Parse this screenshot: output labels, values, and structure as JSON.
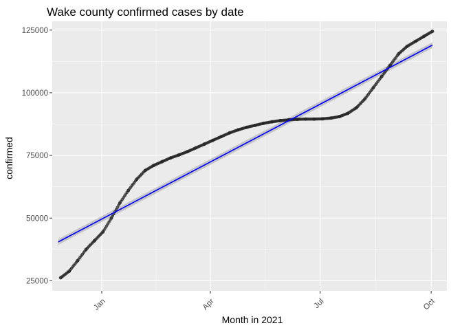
{
  "chart_data": {
    "type": "scatter",
    "title": "Wake county confirmed cases by date",
    "xlabel": "Month in 2021",
    "ylabel": "confirmed",
    "xlim": [
      "2020-11-21",
      "2021-10-14"
    ],
    "ylim": [
      21000,
      128500
    ],
    "x_ticks": [
      {
        "date": "2021-01-01",
        "label": "Jan"
      },
      {
        "date": "2021-04-01",
        "label": "Apr"
      },
      {
        "date": "2021-07-01",
        "label": "Jul"
      },
      {
        "date": "2021-10-01",
        "label": "Oct"
      }
    ],
    "y_ticks": [
      {
        "value": 25000,
        "label": "25000"
      },
      {
        "value": 50000,
        "label": "50000"
      },
      {
        "value": 75000,
        "label": "75000"
      },
      {
        "value": 100000,
        "label": "100000"
      },
      {
        "value": 125000,
        "label": "125000"
      }
    ],
    "grid": true,
    "legend": "none",
    "colors": {
      "panel": "#ebebeb",
      "grid_major": "#ffffff",
      "points": "#1f1f1f",
      "trend": "#0000ff",
      "band": "#bdbdbd"
    },
    "series": [
      {
        "kind": "points",
        "points": [
          [
            "2020-11-28",
            26200
          ],
          [
            "2020-12-05",
            28800
          ],
          [
            "2020-12-12",
            33000
          ],
          [
            "2020-12-19",
            37500
          ],
          [
            "2020-12-26",
            41000
          ],
          [
            "2021-01-02",
            44500
          ],
          [
            "2021-01-09",
            50000
          ],
          [
            "2021-01-16",
            56000
          ],
          [
            "2021-01-23",
            61000
          ],
          [
            "2021-01-30",
            65500
          ],
          [
            "2021-02-06",
            69000
          ],
          [
            "2021-02-13",
            71000
          ],
          [
            "2021-02-20",
            72500
          ],
          [
            "2021-02-27",
            74000
          ],
          [
            "2021-03-06",
            75200
          ],
          [
            "2021-03-13",
            76500
          ],
          [
            "2021-03-20",
            78000
          ],
          [
            "2021-03-27",
            79500
          ],
          [
            "2021-04-03",
            81000
          ],
          [
            "2021-04-10",
            82500
          ],
          [
            "2021-04-17",
            84000
          ],
          [
            "2021-04-24",
            85200
          ],
          [
            "2021-05-01",
            86200
          ],
          [
            "2021-05-08",
            87000
          ],
          [
            "2021-05-15",
            87800
          ],
          [
            "2021-05-22",
            88400
          ],
          [
            "2021-05-29",
            88900
          ],
          [
            "2021-06-05",
            89200
          ],
          [
            "2021-06-12",
            89400
          ],
          [
            "2021-06-19",
            89500
          ],
          [
            "2021-06-26",
            89500
          ],
          [
            "2021-07-03",
            89600
          ],
          [
            "2021-07-10",
            89900
          ],
          [
            "2021-07-17",
            90500
          ],
          [
            "2021-07-24",
            91800
          ],
          [
            "2021-07-31",
            94000
          ],
          [
            "2021-08-07",
            97500
          ],
          [
            "2021-08-14",
            102000
          ],
          [
            "2021-08-21",
            106500
          ],
          [
            "2021-08-28",
            111000
          ],
          [
            "2021-09-04",
            115500
          ],
          [
            "2021-09-11",
            118500
          ],
          [
            "2021-09-18",
            120500
          ],
          [
            "2021-09-25",
            122500
          ],
          [
            "2021-10-02",
            124500
          ]
        ]
      },
      {
        "kind": "linear-fit",
        "start": [
          "2020-11-26",
          40500
        ],
        "end": [
          "2021-10-02",
          119000
        ],
        "band_halfwidth": 900
      }
    ]
  }
}
